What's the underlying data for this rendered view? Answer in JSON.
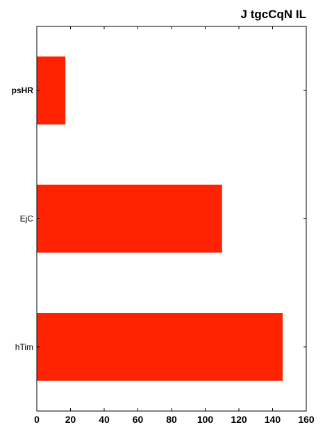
{
  "chart_data": {
    "type": "bar",
    "orientation": "horizontal",
    "title": "J tgcCqN IL",
    "categories": [
      "psHR",
      "EjC",
      "hTim"
    ],
    "category_bold": [
      true,
      false,
      false
    ],
    "values": [
      17,
      110,
      146
    ],
    "bar_color": "#ff2200",
    "xlim": [
      0,
      160
    ],
    "x_ticks": [
      "0",
      "20",
      "40",
      "60",
      "80",
      "100",
      "120",
      "140",
      "160"
    ],
    "xlabel": "",
    "ylabel": "",
    "grid": false,
    "legend": "none"
  }
}
